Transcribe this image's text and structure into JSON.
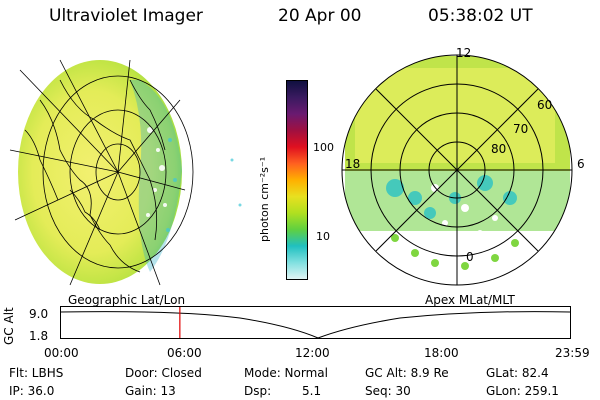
{
  "header": {
    "instrument": "Ultraviolet Imager",
    "date": "20 Apr 00",
    "time": "05:38:02 UT"
  },
  "colorbar": {
    "unit_label": "photon cm⁻²s⁻¹",
    "tick_labels": [
      "100",
      "10"
    ],
    "colors": [
      "#101040",
      "#3a1a60",
      "#6a1a70",
      "#a01040",
      "#e01020",
      "#ff6020",
      "#ffb000",
      "#e8e020",
      "#b0e020",
      "#60d040",
      "#20c0c0",
      "#80e0e0",
      "#e0f4f4"
    ]
  },
  "polar_plot": {
    "lat_labels": [
      "60",
      "70",
      "80"
    ],
    "mlt_labels": {
      "top": "12",
      "left": "18",
      "right": "6",
      "bottom": "0"
    },
    "caption": "Apex MLat/MLT"
  },
  "geo_plot": {
    "caption": "Geographic Lat/Lon"
  },
  "alt_panel": {
    "ylabel": "GC Alt",
    "yticks": [
      "9.0",
      "1.8"
    ],
    "xticks": [
      "00:00",
      "06:00",
      "12:00",
      "18:00",
      "23:59"
    ],
    "current_time_hours": 5.64
  },
  "status": {
    "filter": "Flt: LBHS",
    "door": "Door: Closed",
    "mode": "Mode: Normal",
    "gc_alt": "GC Alt: 8.9 Re",
    "glat": "GLat:  82.4",
    "ip": "IP: 36.0",
    "gain": "Gain: 13",
    "dsp_label": "Dsp:",
    "dsp_value": "5.1",
    "seq": "Seq: 30",
    "glon": "GLon: 259.1"
  }
}
